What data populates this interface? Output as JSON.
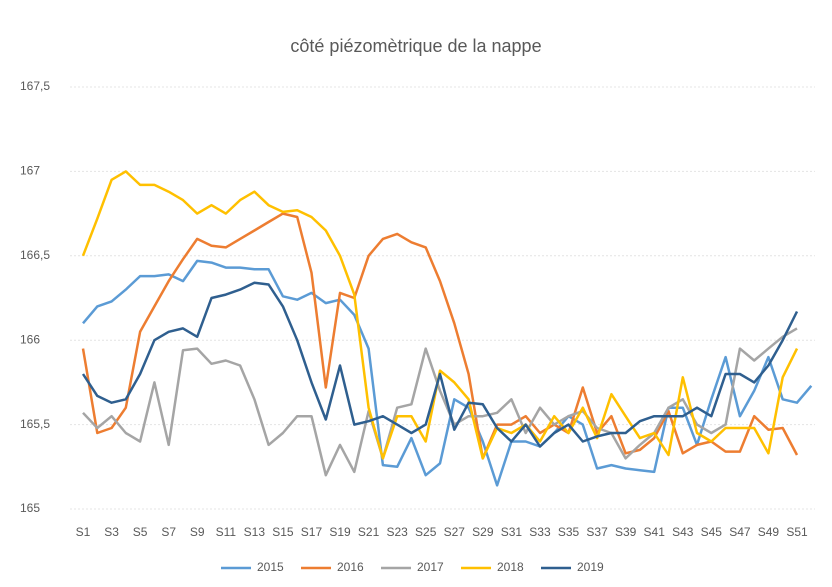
{
  "chart_data": {
    "type": "line",
    "title": "côté piézomètrique de la nappe",
    "categories": [
      "S1",
      null,
      "S3",
      null,
      "S5",
      null,
      "S7",
      null,
      "S9",
      null,
      "S11",
      null,
      "S13",
      null,
      "S15",
      null,
      "S17",
      null,
      "S19",
      null,
      "S21",
      null,
      "S23",
      null,
      "S25",
      null,
      "S27",
      null,
      "S29",
      null,
      "S31",
      null,
      "S33",
      null,
      "S35",
      null,
      "S37",
      null,
      "S39",
      null,
      "S41",
      null,
      "S43",
      null,
      "S45",
      null,
      "S47",
      null,
      "S49",
      null,
      "S51",
      null
    ],
    "ylim": [
      165,
      167.5
    ],
    "yticks": [
      165,
      {
        "value": 165.5,
        "label": "165,5"
      },
      166,
      {
        "value": 166.5,
        "label": "166,5"
      },
      167,
      {
        "value": 167.5,
        "label": "167,5"
      }
    ],
    "grid": true,
    "legend": "bottom",
    "series": [
      {
        "name": "2015",
        "color": "#5b9bd5",
        "values": [
          166.1,
          166.2,
          166.23,
          166.3,
          166.38,
          166.38,
          166.39,
          166.35,
          166.47,
          166.46,
          166.43,
          166.43,
          166.42,
          166.42,
          166.26,
          166.24,
          166.28,
          166.22,
          166.24,
          166.15,
          165.95,
          165.26,
          165.25,
          165.42,
          165.2,
          165.27,
          165.65,
          165.6,
          165.4,
          165.14,
          165.4,
          165.4,
          165.37,
          165.45,
          165.55,
          165.5,
          165.24,
          165.26,
          165.24,
          165.23,
          165.22,
          165.6,
          165.6,
          165.38,
          165.65,
          165.9,
          165.55,
          165.7,
          165.9,
          165.65,
          165.63,
          165.73
        ]
      },
      {
        "name": "2016",
        "color": "#ed7d31",
        "values": [
          165.95,
          165.45,
          165.48,
          165.6,
          166.05,
          166.2,
          166.35,
          166.48,
          166.6,
          166.56,
          166.55,
          166.6,
          166.65,
          166.7,
          166.75,
          166.73,
          166.4,
          165.72,
          166.28,
          166.25,
          166.5,
          166.6,
          166.63,
          166.58,
          166.55,
          166.35,
          166.1,
          165.8,
          165.3,
          165.5,
          165.5,
          165.55,
          165.45,
          165.5,
          165.45,
          165.72,
          165.45,
          165.55,
          165.33,
          165.35,
          165.42,
          165.58,
          165.33,
          165.38,
          165.4,
          165.34,
          165.34,
          165.55,
          165.47,
          165.48,
          165.32,
          null
        ]
      },
      {
        "name": "2017",
        "color": "#a5a5a5",
        "values": [
          165.57,
          165.48,
          165.55,
          165.45,
          165.4,
          165.75,
          165.38,
          165.94,
          165.95,
          165.86,
          165.88,
          165.85,
          165.65,
          165.38,
          165.45,
          165.55,
          165.55,
          165.2,
          165.38,
          165.22,
          165.58,
          165.3,
          165.6,
          165.62,
          165.95,
          165.7,
          165.5,
          165.55,
          165.55,
          165.57,
          165.65,
          165.45,
          165.6,
          165.5,
          165.55,
          165.58,
          165.48,
          165.45,
          165.3,
          165.38,
          165.45,
          165.6,
          165.65,
          165.5,
          165.45,
          165.5,
          165.95,
          165.88,
          165.95,
          166.02,
          166.07,
          null
        ]
      },
      {
        "name": "2018",
        "color": "#ffc000",
        "values": [
          166.5,
          166.72,
          166.95,
          167.0,
          166.92,
          166.92,
          166.88,
          166.83,
          166.75,
          166.8,
          166.75,
          166.83,
          166.88,
          166.8,
          166.76,
          166.77,
          166.73,
          166.65,
          166.5,
          166.27,
          165.6,
          165.3,
          165.55,
          165.55,
          165.4,
          165.82,
          165.75,
          165.65,
          165.3,
          165.48,
          165.45,
          165.5,
          165.4,
          165.55,
          165.45,
          165.6,
          165.42,
          165.68,
          165.55,
          165.42,
          165.45,
          165.32,
          165.78,
          165.45,
          165.4,
          165.48,
          165.48,
          165.48,
          165.33,
          165.78,
          165.95,
          null
        ]
      },
      {
        "name": "2019",
        "color": "#2f5f8f",
        "values": [
          165.8,
          165.67,
          165.63,
          165.65,
          165.8,
          166.0,
          166.05,
          166.07,
          166.02,
          166.25,
          166.27,
          166.3,
          166.34,
          166.33,
          166.2,
          166.0,
          165.75,
          165.53,
          165.85,
          165.5,
          165.52,
          165.55,
          165.5,
          165.45,
          165.5,
          165.8,
          165.47,
          165.63,
          165.62,
          165.48,
          165.4,
          165.5,
          165.37,
          165.45,
          165.5,
          165.4,
          165.43,
          165.45,
          165.45,
          165.52,
          165.55,
          165.55,
          165.55,
          165.6,
          165.55,
          165.8,
          165.8,
          165.75,
          165.85,
          166.0,
          166.17,
          null
        ]
      }
    ]
  }
}
